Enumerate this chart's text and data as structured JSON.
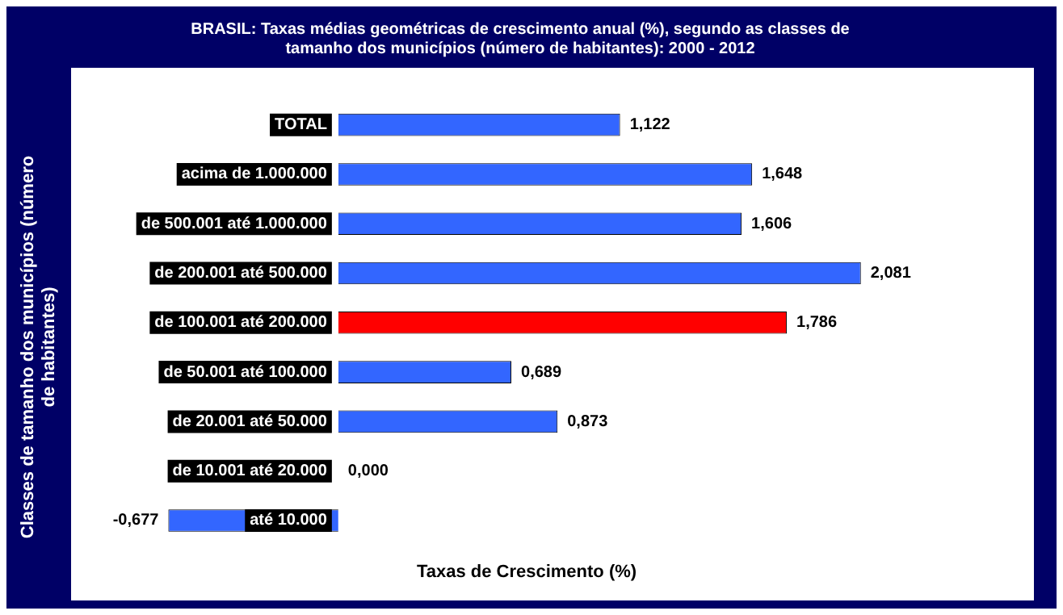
{
  "chart_data": {
    "type": "bar",
    "orientation": "horizontal",
    "title": "BRASIL: Taxas médias geométricas de crescimento anual (%), segundo as classes de tamanho dos municípios (número de habitantes): 2000 - 2012",
    "xlabel": "Taxas de Crescimento (%)",
    "ylabel": "Classes de tamanho dos municípios (número de habitantes)",
    "categories": [
      "TOTAL",
      "acima de 1.000.000",
      "de 500.001 até 1.000.000",
      "de 200.001 até 500.000",
      "de 100.001 até 200.000",
      "de 50.001 até 100.000",
      "de 20.001 até 50.000",
      "de 10.001 até 20.000",
      "até 10.000"
    ],
    "values": [
      1.122,
      1.648,
      1.606,
      2.081,
      1.786,
      0.689,
      0.873,
      0.0,
      -0.677
    ],
    "value_labels": [
      "1,122",
      "1,648",
      "1,606",
      "2,081",
      "1,786",
      "0,689",
      "0,873",
      "0,000",
      "-0,677"
    ],
    "colors": [
      "#3366ff",
      "#3366ff",
      "#3366ff",
      "#3366ff",
      "#ff0000",
      "#3366ff",
      "#3366ff",
      "#3366ff",
      "#3366ff"
    ],
    "tick_labels": false,
    "grid": false,
    "legend": false
  }
}
